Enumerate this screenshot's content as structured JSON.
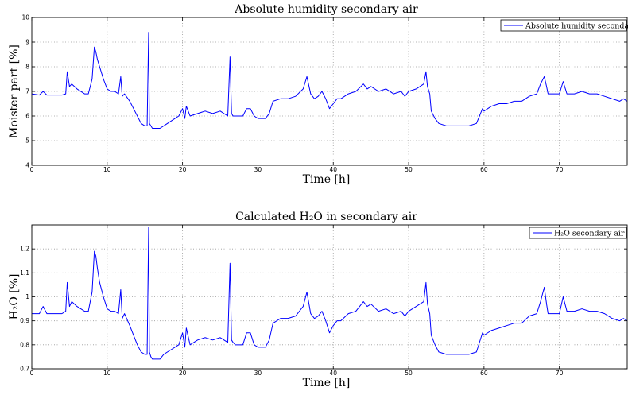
{
  "colors": {
    "series": "#0000ff",
    "grid": "#9a9a9a",
    "axes": "#000000"
  },
  "chart_data": [
    {
      "type": "line",
      "title": "Absolute humidity secondary air",
      "xlabel": "Time [h]",
      "ylabel": "Moister part [%]",
      "xlim": [
        0,
        79
      ],
      "ylim": [
        4,
        10
      ],
      "xticks": [
        0,
        10,
        20,
        30,
        40,
        50,
        60,
        70
      ],
      "yticks": [
        4,
        5,
        6,
        7,
        8,
        9,
        10
      ],
      "grid": true,
      "legend_position": "top-right",
      "series": [
        {
          "name": "Absolute humidity secondary air",
          "x": [
            0,
            1,
            1.5,
            2,
            3,
            4,
            4.5,
            4.7,
            5,
            5.3,
            6,
            7,
            7.5,
            8,
            8.3,
            8.5,
            8.7,
            9,
            9.5,
            10,
            10.5,
            11,
            11.5,
            11.8,
            12,
            12.3,
            13,
            13.5,
            14,
            14.5,
            15,
            15.3,
            15.5,
            15.6,
            15.8,
            16,
            17,
            17.5,
            18,
            18.5,
            19,
            19.5,
            20,
            20.3,
            20.5,
            21,
            22,
            23,
            24,
            25,
            26,
            26.3,
            26.5,
            26.7,
            27,
            28,
            28.5,
            29,
            29.5,
            30,
            31,
            31.5,
            32,
            33,
            34,
            35,
            36,
            36.5,
            37,
            37.5,
            38,
            38.5,
            39,
            39.5,
            40,
            40.5,
            41,
            42,
            43,
            44,
            44.5,
            45,
            46,
            47,
            48,
            49,
            49.5,
            50,
            51,
            52,
            52.3,
            52.5,
            52.8,
            53,
            53.5,
            54,
            55,
            56,
            57,
            58,
            59,
            59.8,
            60,
            60.5,
            61,
            62,
            63,
            64,
            65,
            66,
            67,
            67.5,
            68,
            68.3,
            68.5,
            69,
            70,
            70.5,
            71,
            72,
            73,
            74,
            75,
            76,
            77,
            78,
            78.5,
            79
          ],
          "y": [
            6.9,
            6.85,
            7.0,
            6.85,
            6.85,
            6.85,
            6.9,
            7.8,
            7.2,
            7.3,
            7.1,
            6.9,
            6.9,
            7.5,
            8.8,
            8.6,
            8.3,
            8.0,
            7.5,
            7.1,
            7.0,
            7.0,
            6.9,
            7.6,
            6.8,
            6.9,
            6.6,
            6.3,
            6.0,
            5.7,
            5.6,
            5.6,
            9.4,
            5.7,
            5.6,
            5.5,
            5.5,
            5.6,
            5.7,
            5.8,
            5.9,
            6.0,
            6.3,
            5.9,
            6.4,
            6.0,
            6.1,
            6.2,
            6.1,
            6.2,
            6.0,
            8.4,
            6.1,
            6.0,
            6.0,
            6.0,
            6.3,
            6.3,
            6.0,
            5.9,
            5.9,
            6.1,
            6.6,
            6.7,
            6.7,
            6.8,
            7.1,
            7.6,
            6.9,
            6.7,
            6.8,
            7.0,
            6.7,
            6.3,
            6.5,
            6.7,
            6.7,
            6.9,
            7.0,
            7.3,
            7.1,
            7.2,
            7.0,
            7.1,
            6.9,
            7.0,
            6.8,
            7.0,
            7.1,
            7.3,
            7.8,
            7.2,
            6.9,
            6.2,
            5.9,
            5.7,
            5.6,
            5.6,
            5.6,
            5.6,
            5.7,
            6.3,
            6.2,
            6.3,
            6.4,
            6.5,
            6.5,
            6.6,
            6.6,
            6.8,
            6.9,
            7.3,
            7.6,
            7.2,
            6.9,
            6.9,
            6.9,
            7.4,
            6.9,
            6.9,
            7.0,
            6.9,
            6.9,
            6.8,
            6.7,
            6.6,
            6.7,
            6.6
          ]
        }
      ]
    },
    {
      "type": "line",
      "title": "Calculated H₂O in secondary air",
      "xlabel": "Time [h]",
      "ylabel": "H₂O [%]",
      "xlim": [
        0,
        79
      ],
      "ylim": [
        0.7,
        1.3
      ],
      "xticks": [
        0,
        10,
        20,
        30,
        40,
        50,
        60,
        70
      ],
      "yticks": [
        0.7,
        0.8,
        0.9,
        1,
        1.1,
        1.2
      ],
      "ytick_labels": [
        "0.7",
        "0.8",
        "0.9",
        "1",
        "1.1",
        "1.2"
      ],
      "grid": true,
      "legend_position": "top-right",
      "series": [
        {
          "name": "H₂O secondary air",
          "x": [
            0,
            1,
            1.5,
            2,
            3,
            4,
            4.5,
            4.7,
            5,
            5.3,
            6,
            7,
            7.5,
            8,
            8.3,
            8.5,
            8.7,
            9,
            9.5,
            10,
            10.5,
            11,
            11.5,
            11.8,
            12,
            12.3,
            13,
            13.5,
            14,
            14.5,
            15,
            15.3,
            15.5,
            15.6,
            15.8,
            16,
            17,
            17.5,
            18,
            18.5,
            19,
            19.5,
            20,
            20.3,
            20.5,
            21,
            22,
            23,
            24,
            25,
            26,
            26.3,
            26.5,
            26.7,
            27,
            28,
            28.5,
            29,
            29.5,
            30,
            31,
            31.5,
            32,
            33,
            34,
            35,
            36,
            36.5,
            37,
            37.5,
            38,
            38.5,
            39,
            39.5,
            40,
            40.5,
            41,
            42,
            43,
            44,
            44.5,
            45,
            46,
            47,
            48,
            49,
            49.5,
            50,
            51,
            52,
            52.3,
            52.5,
            52.8,
            53,
            53.5,
            54,
            55,
            56,
            57,
            58,
            59,
            59.8,
            60,
            60.5,
            61,
            62,
            63,
            64,
            65,
            66,
            67,
            67.5,
            68,
            68.3,
            68.5,
            69,
            70,
            70.5,
            71,
            72,
            73,
            74,
            75,
            76,
            77,
            78,
            78.5,
            79
          ],
          "y": [
            0.93,
            0.93,
            0.96,
            0.93,
            0.93,
            0.93,
            0.94,
            1.06,
            0.96,
            0.98,
            0.96,
            0.94,
            0.94,
            1.02,
            1.19,
            1.17,
            1.12,
            1.06,
            1.0,
            0.95,
            0.94,
            0.94,
            0.93,
            1.03,
            0.91,
            0.93,
            0.88,
            0.84,
            0.8,
            0.77,
            0.76,
            0.76,
            1.29,
            0.77,
            0.75,
            0.74,
            0.74,
            0.76,
            0.77,
            0.78,
            0.79,
            0.8,
            0.85,
            0.79,
            0.87,
            0.8,
            0.82,
            0.83,
            0.82,
            0.83,
            0.81,
            1.14,
            0.82,
            0.81,
            0.8,
            0.8,
            0.85,
            0.85,
            0.8,
            0.79,
            0.79,
            0.82,
            0.89,
            0.91,
            0.91,
            0.92,
            0.96,
            1.02,
            0.93,
            0.91,
            0.92,
            0.94,
            0.9,
            0.85,
            0.88,
            0.9,
            0.9,
            0.93,
            0.94,
            0.98,
            0.96,
            0.97,
            0.94,
            0.95,
            0.93,
            0.94,
            0.92,
            0.94,
            0.96,
            0.98,
            1.06,
            0.97,
            0.93,
            0.84,
            0.8,
            0.77,
            0.76,
            0.76,
            0.76,
            0.76,
            0.77,
            0.85,
            0.84,
            0.85,
            0.86,
            0.87,
            0.88,
            0.89,
            0.89,
            0.92,
            0.93,
            0.98,
            1.04,
            0.97,
            0.93,
            0.93,
            0.93,
            1.0,
            0.94,
            0.94,
            0.95,
            0.94,
            0.94,
            0.93,
            0.91,
            0.9,
            0.91,
            0.9
          ]
        }
      ]
    }
  ]
}
